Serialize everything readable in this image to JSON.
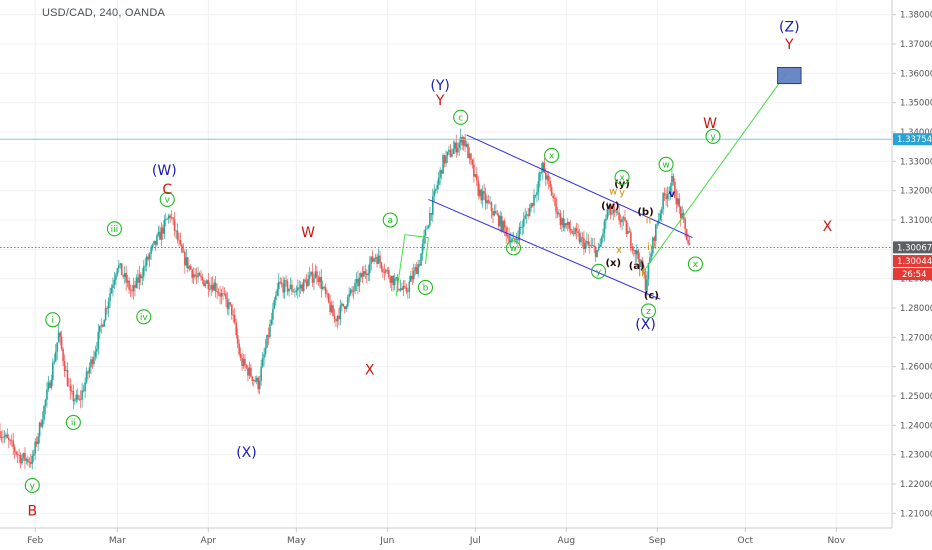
{
  "header": {
    "symbol": "USD/CAD, 240, OANDA"
  },
  "colors": {
    "bull": "#26a69a",
    "bear": "#ef5350",
    "green_label": "#22bb22",
    "red_label": "#d0160f",
    "blue_label": "#1a1ab8",
    "dark_label": "#2a0a0a",
    "orange_label": "#d09010",
    "channel": "#3030e0",
    "target_line": "#44dd44",
    "resistance": "#7ec8e3",
    "current_price_bg": "#e53935",
    "last_close_bg": "#5d6063",
    "resistance_bg": "#29a3d6",
    "target_box": "#5b7bc0"
  },
  "chart_data": {
    "type": "candlestick",
    "title": "USD/CAD, 240, OANDA",
    "ylim": [
      1.205,
      1.385
    ],
    "y_ticks": [
      "1.21000",
      "1.22000",
      "1.23000",
      "1.24000",
      "1.25000",
      "1.26000",
      "1.27000",
      "1.28000",
      "1.29000",
      "1.30000",
      "1.31000",
      "1.32000",
      "1.33000",
      "1.34000",
      "1.35000",
      "1.36000",
      "1.37000",
      "1.38000"
    ],
    "x_ticks": [
      {
        "label": "Feb",
        "date": "2018-02-01"
      },
      {
        "label": "Mar",
        "date": "2018-03-01"
      },
      {
        "label": "Apr",
        "date": "2018-04-01"
      },
      {
        "label": "May",
        "date": "2018-05-01"
      },
      {
        "label": "Jun",
        "date": "2018-06-01"
      },
      {
        "label": "Jul",
        "date": "2018-07-01"
      },
      {
        "label": "Aug",
        "date": "2018-08-01"
      },
      {
        "label": "Sep",
        "date": "2018-09-01"
      },
      {
        "label": "Oct",
        "date": "2018-10-01"
      },
      {
        "label": "Nov",
        "date": "2018-11-01"
      }
    ],
    "xlim": [
      "2018-01-20",
      "2018-11-20"
    ],
    "price_path": [
      {
        "date": "2018-01-20",
        "price": 1.238
      },
      {
        "date": "2018-01-27",
        "price": 1.229
      },
      {
        "date": "2018-01-31",
        "price": 1.228
      },
      {
        "date": "2018-02-06",
        "price": 1.255
      },
      {
        "date": "2018-02-09",
        "price": 1.271
      },
      {
        "date": "2018-02-13",
        "price": 1.25
      },
      {
        "date": "2018-02-16",
        "price": 1.248
      },
      {
        "date": "2018-02-22",
        "price": 1.268
      },
      {
        "date": "2018-03-01",
        "price": 1.295
      },
      {
        "date": "2018-03-06",
        "price": 1.285
      },
      {
        "date": "2018-03-12",
        "price": 1.298
      },
      {
        "date": "2018-03-19",
        "price": 1.312
      },
      {
        "date": "2018-03-23",
        "price": 1.298
      },
      {
        "date": "2018-03-28",
        "price": 1.29
      },
      {
        "date": "2018-04-03",
        "price": 1.288
      },
      {
        "date": "2018-04-09",
        "price": 1.279
      },
      {
        "date": "2018-04-12",
        "price": 1.262
      },
      {
        "date": "2018-04-18",
        "price": 1.254
      },
      {
        "date": "2018-04-25",
        "price": 1.288
      },
      {
        "date": "2018-05-01",
        "price": 1.286
      },
      {
        "date": "2018-05-08",
        "price": 1.292
      },
      {
        "date": "2018-05-14",
        "price": 1.276
      },
      {
        "date": "2018-05-21",
        "price": 1.287
      },
      {
        "date": "2018-05-28",
        "price": 1.298
      },
      {
        "date": "2018-06-01",
        "price": 1.292
      },
      {
        "date": "2018-06-07",
        "price": 1.285
      },
      {
        "date": "2018-06-12",
        "price": 1.296
      },
      {
        "date": "2018-06-15",
        "price": 1.31
      },
      {
        "date": "2018-06-20",
        "price": 1.33
      },
      {
        "date": "2018-06-27",
        "price": 1.338
      },
      {
        "date": "2018-07-02",
        "price": 1.32
      },
      {
        "date": "2018-07-09",
        "price": 1.31
      },
      {
        "date": "2018-07-14",
        "price": 1.302
      },
      {
        "date": "2018-07-20",
        "price": 1.315
      },
      {
        "date": "2018-07-24",
        "price": 1.328
      },
      {
        "date": "2018-07-30",
        "price": 1.31
      },
      {
        "date": "2018-08-07",
        "price": 1.302
      },
      {
        "date": "2018-08-12",
        "price": 1.299
      },
      {
        "date": "2018-08-15",
        "price": 1.313
      },
      {
        "date": "2018-08-20",
        "price": 1.31
      },
      {
        "date": "2018-08-23",
        "price": 1.303
      },
      {
        "date": "2018-08-26",
        "price": 1.296
      },
      {
        "date": "2018-08-28",
        "price": 1.288
      },
      {
        "date": "2018-08-31",
        "price": 1.305
      },
      {
        "date": "2018-09-03",
        "price": 1.317
      },
      {
        "date": "2018-09-06",
        "price": 1.323
      },
      {
        "date": "2018-09-09",
        "price": 1.312
      },
      {
        "date": "2018-09-12",
        "price": 1.3007
      }
    ],
    "channel": {
      "upper": [
        {
          "date": "2018-06-28",
          "price": 1.339
        },
        {
          "date": "2018-09-13",
          "price": 1.304
        }
      ],
      "lower": [
        {
          "date": "2018-06-15",
          "price": 1.317
        },
        {
          "date": "2018-09-02",
          "price": 1.283
        }
      ]
    },
    "triangle": [
      {
        "date": "2018-06-04",
        "price": 1.284
      },
      {
        "date": "2018-06-07",
        "price": 1.305
      },
      {
        "date": "2018-06-15",
        "price": 1.304
      },
      {
        "date": "2018-06-14",
        "price": 1.295
      }
    ],
    "target_line": [
      {
        "date": "2018-08-27",
        "price": 1.292
      },
      {
        "date": "2018-10-15",
        "price": 1.36
      }
    ],
    "target_box": {
      "x_from": "2018-10-12",
      "x_to": "2018-10-20",
      "y_from": 1.3565,
      "y_to": 1.362
    },
    "resistance_level": 1.33754,
    "last_close_level": 1.30067,
    "current_price_level": 1.30044,
    "price_tags": {
      "resistance": "1.33754",
      "last_close": "1.30067",
      "current_price": "1.30044",
      "countdown": "26:54"
    },
    "wave_labels": [
      {
        "text": "y",
        "style": "green-circle",
        "date": "2018-01-31",
        "price": 1.2195
      },
      {
        "text": "B",
        "style": "red",
        "date": "2018-01-31",
        "price": 1.211
      },
      {
        "text": "i",
        "style": "green-circle",
        "date": "2018-02-07",
        "price": 1.276
      },
      {
        "text": "ii",
        "style": "green-circle",
        "date": "2018-02-14",
        "price": 1.241
      },
      {
        "text": "iii",
        "style": "green-circle",
        "date": "2018-02-28",
        "price": 1.307
      },
      {
        "text": "iv",
        "style": "green-circle",
        "date": "2018-03-10",
        "price": 1.277
      },
      {
        "text": "v",
        "style": "green-circle",
        "date": "2018-03-18",
        "price": 1.317
      },
      {
        "text": "(W)",
        "style": "blue",
        "date": "2018-03-17",
        "price": 1.327
      },
      {
        "text": "C",
        "style": "red",
        "date": "2018-03-18",
        "price": 1.3205
      },
      {
        "text": "(X)",
        "style": "blue",
        "date": "2018-04-14",
        "price": 1.231
      },
      {
        "text": "W",
        "style": "red",
        "date": "2018-05-05",
        "price": 1.306
      },
      {
        "text": "X",
        "style": "red",
        "date": "2018-05-26",
        "price": 1.259
      },
      {
        "text": "a",
        "style": "green-circle",
        "date": "2018-06-02",
        "price": 1.31
      },
      {
        "text": "b",
        "style": "green-circle",
        "date": "2018-06-14",
        "price": 1.287
      },
      {
        "text": "(Y)",
        "style": "blue",
        "date": "2018-06-19",
        "price": 1.356
      },
      {
        "text": "Y",
        "style": "red",
        "date": "2018-06-19",
        "price": 1.351
      },
      {
        "text": "c",
        "style": "green-circle",
        "date": "2018-06-26",
        "price": 1.345
      },
      {
        "text": "w",
        "style": "green-circle",
        "date": "2018-07-14",
        "price": 1.3005
      },
      {
        "text": "x",
        "style": "green-circle",
        "date": "2018-07-27",
        "price": 1.332
      },
      {
        "text": "y",
        "style": "green-circle",
        "date": "2018-08-12",
        "price": 1.2925
      },
      {
        "text": "(w)",
        "style": "dark",
        "date": "2018-08-16",
        "price": 1.315
      },
      {
        "text": "(x)",
        "style": "dark",
        "date": "2018-08-17",
        "price": 1.2955
      },
      {
        "text": "(y)",
        "style": "dark",
        "date": "2018-08-20",
        "price": 1.3225
      },
      {
        "text": "x",
        "style": "green-circle",
        "date": "2018-08-20",
        "price": 1.3245
      },
      {
        "text": "w",
        "style": "orange",
        "date": "2018-08-17",
        "price": 1.32
      },
      {
        "text": "y",
        "style": "orange",
        "date": "2018-08-20",
        "price": 1.3195
      },
      {
        "text": "x",
        "style": "orange",
        "date": "2018-08-19",
        "price": 1.3
      },
      {
        "text": "(b)",
        "style": "dark",
        "date": "2018-08-28",
        "price": 1.313
      },
      {
        "text": "(a)",
        "style": "dark",
        "date": "2018-08-25",
        "price": 1.2945
      },
      {
        "text": "(c)",
        "style": "dark",
        "date": "2018-08-30",
        "price": 1.2845
      },
      {
        "text": "ii",
        "style": "orange",
        "date": "2018-08-29",
        "price": 1.31
      },
      {
        "text": "iv",
        "style": "orange",
        "date": "2018-08-30",
        "price": 1.301
      },
      {
        "text": "iii",
        "style": "orange",
        "date": "2018-08-27",
        "price": 1.292
      },
      {
        "text": "z",
        "style": "green-circle",
        "date": "2018-08-29",
        "price": 1.279
      },
      {
        "text": "(X)",
        "style": "blue",
        "date": "2018-08-28",
        "price": 1.2745
      },
      {
        "text": "w",
        "style": "green-circle",
        "date": "2018-09-04",
        "price": 1.329
      },
      {
        "text": "v",
        "style": "blue-small",
        "date": "2018-09-06",
        "price": 1.319
      },
      {
        "text": "x",
        "style": "green-circle",
        "date": "2018-09-14",
        "price": 1.295
      },
      {
        "text": "W",
        "style": "red",
        "date": "2018-09-19",
        "price": 1.343
      },
      {
        "text": "y",
        "style": "green-circle",
        "date": "2018-09-20",
        "price": 1.3385
      },
      {
        "text": "X",
        "style": "red",
        "date": "2018-10-29",
        "price": 1.308
      },
      {
        "text": "(Z)",
        "style": "blue",
        "date": "2018-10-16",
        "price": 1.376
      },
      {
        "text": "Y",
        "style": "red",
        "date": "2018-10-16",
        "price": 1.37
      }
    ]
  }
}
